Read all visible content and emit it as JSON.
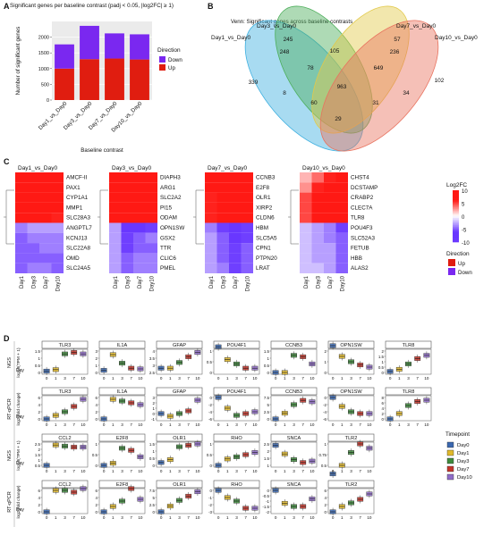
{
  "panels": {
    "A": {
      "label": "A",
      "title": "Significant genes per baseline contrast (padj < 0.05, |log2FC| ≥ 1)",
      "ylabel": "Number of significant genes",
      "xlabel": "Baseline contrast",
      "legend_title": "Direction",
      "legend": [
        "Down",
        "Up"
      ]
    },
    "B": {
      "label": "B",
      "title": "Venn: Significant genes across baseline contrasts"
    },
    "C": {
      "label": "C",
      "legend_title": "Log2FC",
      "legend2_title": "Direction",
      "legend2": [
        "Up",
        "Down"
      ]
    },
    "D": {
      "label": "D",
      "legend_title": "Timepoint",
      "legend": [
        "Day0",
        "Day1",
        "Day3",
        "Day7",
        "Day10"
      ],
      "day_label": "Day"
    }
  },
  "colors": {
    "down": "#7a28f0",
    "up": "#e01d10",
    "day0": "#3a67b0",
    "day1": "#e0b92a",
    "day3": "#3e8a3c",
    "day7": "#c4352a",
    "day10": "#8f6cc8",
    "venn": [
      "#3fb0e0",
      "#4cae5a",
      "#e2c94a",
      "#e8735f"
    ]
  },
  "chart_data": [
    {
      "type": "bar",
      "title": "Significant genes per baseline contrast (padj < 0.05, |log2FC| ≥ 1)",
      "xlabel": "Baseline contrast",
      "ylabel": "Number of significant genes",
      "categories": [
        "Day1_vs_Day0",
        "Day3_vs_Day0",
        "Day7_vs_Day0",
        "Day10_vs_Day0"
      ],
      "series": [
        {
          "name": "Up",
          "values": [
            1000,
            1300,
            1320,
            1290
          ]
        },
        {
          "name": "Down",
          "values": [
            770,
            1060,
            800,
            800
          ]
        }
      ],
      "stacked": true,
      "ylim": [
        0,
        2500
      ],
      "yticks": [
        0,
        500,
        1000,
        1500,
        2000
      ],
      "legend": "right"
    },
    {
      "type": "venn",
      "title": "Venn: Significant genes across baseline contrasts",
      "sets": [
        "Day1_vs_Day0",
        "Day3_vs_Day0",
        "Day7_vs_Day0",
        "Day10_vs_Day0"
      ],
      "regions": [
        {
          "sets": [
            "Day1_vs_Day0"
          ],
          "value": 339
        },
        {
          "sets": [
            "Day3_vs_Day0"
          ],
          "value": 245
        },
        {
          "sets": [
            "Day7_vs_Day0"
          ],
          "value": 57
        },
        {
          "sets": [
            "Day10_vs_Day0"
          ],
          "value": 102
        },
        {
          "sets": [
            "Day1_vs_Day0",
            "Day3_vs_Day0"
          ],
          "value": 248
        },
        {
          "sets": [
            "Day3_vs_Day0",
            "Day7_vs_Day0"
          ],
          "value": 105
        },
        {
          "sets": [
            "Day7_vs_Day0",
            "Day10_vs_Day0"
          ],
          "value": 236
        },
        {
          "sets": [
            "Day1_vs_Day0",
            "Day7_vs_Day0"
          ],
          "value": 8
        },
        {
          "sets": [
            "Day3_vs_Day0",
            "Day10_vs_Day0"
          ],
          "value": 34
        },
        {
          "sets": [
            "Day1_vs_Day0",
            "Day10_vs_Day0"
          ],
          "value": 29
        },
        {
          "sets": [
            "Day1_vs_Day0",
            "Day3_vs_Day0",
            "Day7_vs_Day0"
          ],
          "value": 78
        },
        {
          "sets": [
            "Day3_vs_Day0",
            "Day7_vs_Day0",
            "Day10_vs_Day0"
          ],
          "value": 649
        },
        {
          "sets": [
            "Day1_vs_Day0",
            "Day7_vs_Day0",
            "Day10_vs_Day0"
          ],
          "value": 60
        },
        {
          "sets": [
            "Day1_vs_Day0",
            "Day3_vs_Day0",
            "Day10_vs_Day0"
          ],
          "value": 31
        },
        {
          "sets": [
            "Day1_vs_Day0",
            "Day3_vs_Day0",
            "Day7_vs_Day0",
            "Day10_vs_Day0"
          ],
          "value": 963
        }
      ]
    },
    {
      "type": "heatmap",
      "legend": "Log2FC",
      "colorbar_ticks": [
        10,
        5,
        0,
        -5,
        -10
      ],
      "columns": [
        "Day1",
        "Day3",
        "Day7",
        "Day10"
      ],
      "panels": [
        {
          "title": "Day1_vs_Day0",
          "rows": [
            "AMCF-II",
            "PAX1",
            "CYP1A1",
            "MMP1",
            "SLC28A3",
            "ANGPTL7",
            "KCNJ13",
            "SLC22A8",
            "OMD",
            "SLC24A5"
          ],
          "values": [
            [
              9,
              8,
              7,
              7
            ],
            [
              9,
              8,
              8,
              7
            ],
            [
              8,
              8,
              7,
              7
            ],
            [
              8,
              7,
              7,
              7
            ],
            [
              8,
              7,
              7,
              6
            ],
            [
              -4,
              -3,
              -3,
              -3
            ],
            [
              -5,
              -4,
              -4,
              -4
            ],
            [
              -5,
              -5,
              -4,
              -4
            ],
            [
              -5,
              -5,
              -5,
              -5
            ],
            [
              -5,
              -4,
              -4,
              -5
            ]
          ]
        },
        {
          "title": "Day3_vs_Day0",
          "rows": [
            "DIAPH3",
            "ARG1",
            "SLC2A2",
            "PI15",
            "ODAM",
            "OPN1SW",
            "GSX2",
            "TTR",
            "CLIC6",
            "PMEL"
          ],
          "values": [
            [
              8,
              9,
              8,
              8
            ],
            [
              8,
              10,
              9,
              8
            ],
            [
              8,
              9,
              9,
              8
            ],
            [
              7,
              9,
              8,
              8
            ],
            [
              7,
              9,
              8,
              8
            ],
            [
              -3,
              -8,
              -7,
              -6
            ],
            [
              -3,
              -6,
              -5,
              -4
            ],
            [
              -3,
              -6,
              -5,
              -5
            ],
            [
              -3,
              -5,
              -4,
              -4
            ],
            [
              -3,
              -5,
              -4,
              -4
            ]
          ]
        },
        {
          "title": "Day7_vs_Day0",
          "rows": [
            "CCNB3",
            "E2F8",
            "OLR1",
            "XIRP2",
            "CLDN6",
            "HBM",
            "SLC5A5",
            "CPN1",
            "PTPN20",
            "LRAT"
          ],
          "values": [
            [
              7,
              8,
              9,
              8
            ],
            [
              7,
              8,
              9,
              8
            ],
            [
              6,
              8,
              9,
              8
            ],
            [
              6,
              7,
              8,
              7
            ],
            [
              6,
              7,
              8,
              7
            ],
            [
              -4,
              -6,
              -8,
              -6
            ],
            [
              -3,
              -5,
              -7,
              -6
            ],
            [
              -3,
              -5,
              -6,
              -5
            ],
            [
              -3,
              -5,
              -6,
              -5
            ],
            [
              -3,
              -4,
              -6,
              -5
            ]
          ]
        },
        {
          "title": "Day10_vs_Day0",
          "rows": [
            "CHST4",
            "DCSTAMP",
            "CRABP2",
            "CLEC7A",
            "TLR8",
            "POU4F3",
            "SLC52A3",
            "FETUB",
            "HBB",
            "ALAS2"
          ],
          "values": [
            [
              2,
              4,
              6,
              8
            ],
            [
              3,
              6,
              7,
              9
            ],
            [
              5,
              7,
              8,
              9
            ],
            [
              5,
              7,
              8,
              9
            ],
            [
              5,
              7,
              8,
              9
            ],
            [
              -2,
              -3,
              -4,
              -6
            ],
            [
              -2,
              -3,
              -4,
              -5
            ],
            [
              -2,
              -3,
              -3,
              -5
            ],
            [
              -2,
              -3,
              -3,
              -5
            ],
            [
              -2,
              -2,
              -3,
              -5
            ]
          ]
        }
      ]
    },
    {
      "type": "box",
      "x_ticks": [
        "0",
        "1",
        "3",
        "7",
        "10"
      ],
      "groups": [
        {
          "method": "NGS",
          "ylabel": "log10(TPM + 1)",
          "genes": [
            {
              "gene": "TLR3",
              "medians": [
                0.1,
                0.2,
                1.3,
                1.4,
                1.3
              ],
              "yticks": [
                0.0,
                0.5,
                1.0,
                1.5
              ]
            },
            {
              "gene": "IL1A",
              "medians": [
                0.3,
                2.5,
                1.3,
                0.6,
                0.5
              ],
              "yticks": [
                0,
                1,
                2,
                3
              ]
            },
            {
              "gene": "GFAP",
              "medians": [
                2.8,
                2.8,
                3.2,
                3.6,
                3.9
              ],
              "yticks": [
                2.5,
                3.0,
                3.5,
                4.0
              ]
            },
            {
              "gene": "POU4F1",
              "medians": [
                1.2,
                0.6,
                0.4,
                0.2,
                0.2
              ],
              "yticks": [
                0.0,
                0.5,
                1.0
              ]
            },
            {
              "gene": "CCNB3",
              "medians": [
                0.0,
                0.0,
                1.2,
                1.1,
                0.6
              ],
              "yticks": [
                0.0,
                0.5,
                1.0,
                1.5
              ]
            },
            {
              "gene": "OPN1SW",
              "medians": [
                2.5,
                1.5,
                1.0,
                0.7,
                0.5
              ],
              "yticks": [
                0,
                1,
                2
              ]
            },
            {
              "gene": "TLR8",
              "medians": [
                0.1,
                0.3,
                0.8,
                1.3,
                1.6
              ],
              "yticks": [
                0.0,
                0.5,
                1.0,
                1.5,
                2.0
              ]
            }
          ]
        },
        {
          "method": "RT-qPCR",
          "ylabel": "log2(fold change)",
          "genes": [
            {
              "gene": "TLR3",
              "medians": [
                0.0,
                1.0,
                2.0,
                3.5,
                5.5
              ],
              "yticks": [
                0,
                2,
                4,
                6
              ]
            },
            {
              "gene": "IL1A",
              "medians": [
                0.0,
                5.5,
                5.0,
                4.5,
                4.0
              ],
              "yticks": [
                0,
                2,
                4,
                6
              ]
            },
            {
              "gene": "GFAP",
              "medians": [
                0.0,
                -0.5,
                0.0,
                0.5,
                2.5
              ],
              "yticks": [
                -1,
                0,
                1,
                2,
                3
              ]
            },
            {
              "gene": "POU4F1",
              "medians": [
                0.0,
                -3.0,
                -5.0,
                -4.5,
                -4.0
              ],
              "yticks": [
                -6,
                -4,
                -2,
                0
              ]
            },
            {
              "gene": "CCNB3",
              "medians": [
                0.0,
                2.0,
                5.0,
                6.5,
                6.0
              ],
              "yticks": [
                0.0,
                2.5,
                5.0,
                7.5
              ]
            },
            {
              "gene": "OPN1SW",
              "medians": [
                0.0,
                -2.5,
                -4.0,
                -4.5,
                -4.5
              ],
              "yticks": [
                -6,
                -4,
                -2,
                0
              ]
            },
            {
              "gene": "TLR8",
              "medians": [
                0.0,
                2.0,
                5.0,
                6.5,
                7.0
              ],
              "yticks": [
                0,
                2,
                4,
                6,
                8
              ]
            }
          ]
        },
        {
          "method": "NGS",
          "ylabel": "log10(TPM + 1)",
          "genes": [
            {
              "gene": "CCL2",
              "medians": [
                0.5,
                2.4,
                2.3,
                2.2,
                2.2
              ],
              "yticks": [
                0.5,
                1.0,
                1.5,
                2.0,
                2.5
              ]
            },
            {
              "gene": "E2F8",
              "medians": [
                0.0,
                0.1,
                0.8,
                0.7,
                0.4
              ],
              "yticks": [
                0.0,
                0.5,
                1.0
              ]
            },
            {
              "gene": "OLR1",
              "medians": [
                0.2,
                0.4,
                1.3,
                1.4,
                1.5
              ],
              "yticks": [
                0.0,
                0.5,
                1.0,
                1.5
              ]
            },
            {
              "gene": "RHO",
              "medians": [
                0.0,
                0.3,
                0.4,
                0.5,
                0.6
              ],
              "yticks": [
                0.0,
                0.5,
                1.0
              ]
            },
            {
              "gene": "SNCA",
              "medians": [
                2.4,
                1.8,
                1.4,
                1.2,
                1.3
              ],
              "yticks": [
                1.0,
                1.5,
                2.0,
                2.5
              ]
            },
            {
              "gene": "TLR2",
              "medians": [
                0.3,
                0.5,
                0.8,
                1.0,
                0.9
              ],
              "yticks": [
                0.5,
                0.75,
                1.0
              ]
            }
          ]
        },
        {
          "method": "RT-qPCR",
          "ylabel": "log2(fold change)",
          "genes": [
            {
              "gene": "CCL2",
              "medians": [
                0.0,
                6.0,
                6.0,
                5.5,
                6.5
              ],
              "yticks": [
                0,
                2,
                4,
                6
              ]
            },
            {
              "gene": "E2F8",
              "medians": [
                0.0,
                1.5,
                3.0,
                6.5,
                3.5
              ],
              "yticks": [
                0,
                2,
                4,
                6
              ]
            },
            {
              "gene": "OLR1",
              "medians": [
                0.0,
                2.0,
                4.0,
                5.5,
                7.0
              ],
              "yticks": [
                0.0,
                2.5,
                5.0,
                7.5
              ]
            },
            {
              "gene": "RHO",
              "medians": [
                0.0,
                -1.0,
                -1.5,
                -2.5,
                -2.5
              ],
              "yticks": [
                -3,
                -2,
                -1,
                0
              ]
            },
            {
              "gene": "SNCA",
              "medians": [
                0.0,
                -1.2,
                -1.5,
                -1.5,
                -0.8
              ],
              "yticks": [
                -2.0,
                -1.5,
                -1.0,
                -0.5,
                0.0
              ]
            },
            {
              "gene": "TLR2",
              "medians": [
                0.0,
                1.5,
                2.5,
                3.5,
                5.0
              ],
              "yticks": [
                0,
                2,
                4,
                6
              ]
            }
          ]
        }
      ]
    }
  ]
}
